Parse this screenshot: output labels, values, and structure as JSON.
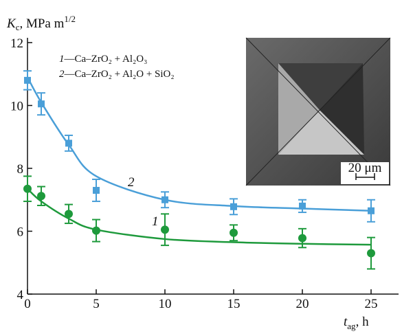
{
  "chart_data": {
    "type": "scatter",
    "y_label": {
      "symbol": "K",
      "subscript": "c",
      "unit": ", MPa m",
      "superscript": "1/2"
    },
    "x_label": {
      "symbol": "t",
      "subscript": "ag",
      "unit": ", h"
    },
    "x": [
      0,
      1,
      3,
      5,
      10,
      15,
      20,
      25
    ],
    "xlim": [
      0,
      27
    ],
    "xticks": [
      0,
      5,
      10,
      15,
      20,
      25
    ],
    "ylim": [
      4,
      12
    ],
    "yticks": [
      4,
      6,
      8,
      10,
      12
    ],
    "series": [
      {
        "label": "1",
        "name": "Ca–ZrO₂ + Al₂O₃",
        "color": "#1e9a3c",
        "marker": "circle",
        "values": [
          7.35,
          7.12,
          6.55,
          6.02,
          6.05,
          5.95,
          5.78,
          5.3
        ],
        "errors": [
          0.4,
          0.3,
          0.3,
          0.35,
          0.5,
          0.25,
          0.3,
          0.5
        ],
        "fit": [
          7.35,
          6.95,
          6.4,
          6.05,
          5.75,
          5.65,
          5.6,
          5.57
        ]
      },
      {
        "label": "2",
        "name": "Ca–ZrO₂ + Al₂O + SiO₂",
        "color": "#4a9fd8",
        "marker": "square",
        "values": [
          10.8,
          10.05,
          8.8,
          7.3,
          7.0,
          6.78,
          6.8,
          6.65
        ],
        "errors": [
          0.3,
          0.35,
          0.25,
          0.35,
          0.25,
          0.25,
          0.2,
          0.35
        ],
        "fit": [
          10.9,
          10.1,
          8.75,
          7.75,
          7.0,
          6.8,
          6.72,
          6.65
        ]
      }
    ],
    "inset": {
      "scale_label": "20 μm"
    }
  }
}
